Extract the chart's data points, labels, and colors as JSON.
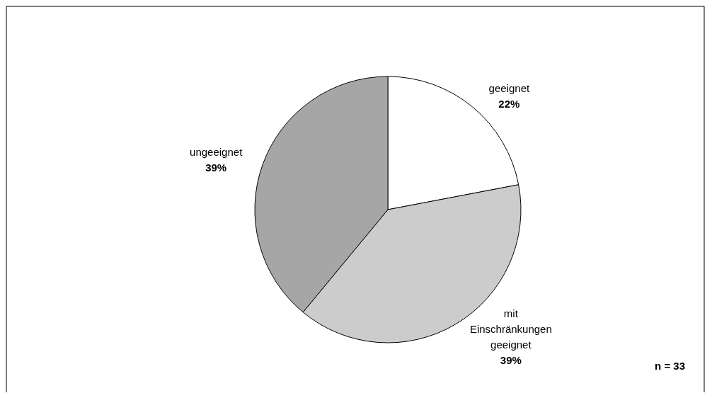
{
  "chart_data": {
    "type": "pie",
    "categories": [
      "geeignet",
      "mit Einschränkungen geeignet",
      "ungeeignet"
    ],
    "values": [
      22,
      39,
      39
    ],
    "colors": [
      "#ffffff",
      "#cccccc",
      "#a6a6a6"
    ],
    "value_labels": [
      "22%",
      "39%",
      "39%"
    ],
    "annotations": [
      "n = 33"
    ],
    "legend": false
  }
}
